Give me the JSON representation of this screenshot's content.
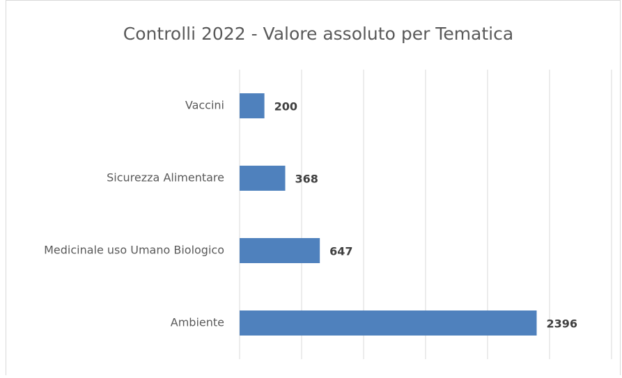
{
  "chart_data": {
    "type": "bar",
    "orientation": "horizontal",
    "title": "Controlli 2022 - Valore assoluto per Tematica",
    "categories": [
      "Vaccini",
      "Sicurezza Alimentare",
      "Medicinale uso Umano Biologico",
      "Ambiente"
    ],
    "values": [
      200,
      368,
      647,
      2396
    ],
    "color": "#4f81bd",
    "xlim": [
      0,
      3000
    ],
    "xticks": [
      0,
      500,
      1000,
      1500,
      2000,
      2500,
      3000
    ],
    "grid": true
  }
}
